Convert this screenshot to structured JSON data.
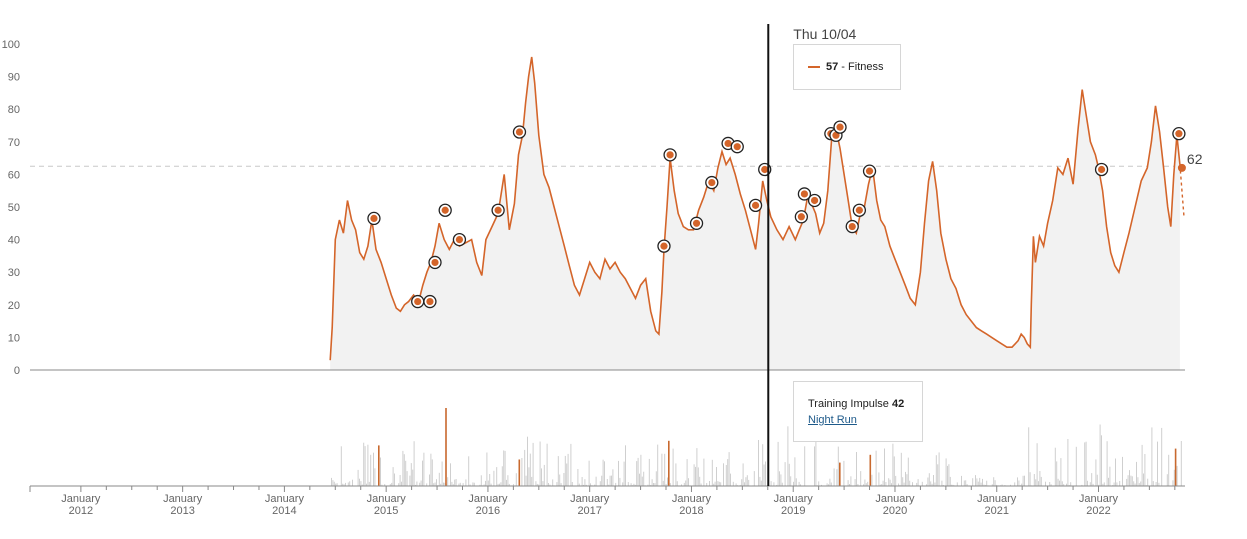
{
  "chart_data": {
    "type": "area",
    "title": "",
    "ylim": [
      0,
      100
    ],
    "yticks": [
      0,
      10,
      20,
      30,
      40,
      50,
      60,
      70,
      80,
      90,
      100
    ],
    "xlim": [
      2011.5,
      2022.85
    ],
    "x_ticks": [
      {
        "year": 2012,
        "label_top": "January",
        "label_bottom": "2012"
      },
      {
        "year": 2013,
        "label_top": "January",
        "label_bottom": "2013"
      },
      {
        "year": 2014,
        "label_top": "January",
        "label_bottom": "2014"
      },
      {
        "year": 2015,
        "label_top": "January",
        "label_bottom": "2015"
      },
      {
        "year": 2016,
        "label_top": "January",
        "label_bottom": "2016"
      },
      {
        "year": 2017,
        "label_top": "January",
        "label_bottom": "2017"
      },
      {
        "year": 2018,
        "label_top": "January",
        "label_bottom": "2018"
      },
      {
        "year": 2019,
        "label_top": "January",
        "label_bottom": "2019"
      },
      {
        "year": 2020,
        "label_top": "January",
        "label_bottom": "2020"
      },
      {
        "year": 2021,
        "label_top": "January",
        "label_bottom": "2021"
      },
      {
        "year": 2022,
        "label_top": "January",
        "label_bottom": "2022"
      }
    ],
    "fitness_series": {
      "name": "Fitness",
      "color": "#d4652a",
      "fill": "#f2f2f2",
      "points": [
        [
          2014.45,
          3
        ],
        [
          2014.47,
          13
        ],
        [
          2014.5,
          40
        ],
        [
          2014.54,
          46
        ],
        [
          2014.58,
          42
        ],
        [
          2014.62,
          52
        ],
        [
          2014.66,
          46
        ],
        [
          2014.7,
          43
        ],
        [
          2014.74,
          36
        ],
        [
          2014.78,
          34
        ],
        [
          2014.82,
          38
        ],
        [
          2014.86,
          46
        ],
        [
          2014.9,
          37
        ],
        [
          2014.95,
          33
        ],
        [
          2015.0,
          28
        ],
        [
          2015.05,
          23
        ],
        [
          2015.1,
          19
        ],
        [
          2015.14,
          18
        ],
        [
          2015.18,
          20
        ],
        [
          2015.22,
          21
        ],
        [
          2015.27,
          23
        ],
        [
          2015.32,
          21
        ],
        [
          2015.36,
          26
        ],
        [
          2015.4,
          30
        ],
        [
          2015.44,
          33
        ],
        [
          2015.48,
          38
        ],
        [
          2015.52,
          45
        ],
        [
          2015.57,
          40
        ],
        [
          2015.62,
          37
        ],
        [
          2015.67,
          40
        ],
        [
          2015.72,
          38
        ],
        [
          2015.78,
          39
        ],
        [
          2015.84,
          40
        ],
        [
          2015.89,
          33
        ],
        [
          2015.94,
          29
        ],
        [
          2015.98,
          40
        ],
        [
          2016.04,
          44
        ],
        [
          2016.1,
          48
        ],
        [
          2016.16,
          60
        ],
        [
          2016.21,
          43
        ],
        [
          2016.26,
          51
        ],
        [
          2016.3,
          66
        ],
        [
          2016.34,
          72
        ],
        [
          2016.37,
          82
        ],
        [
          2016.4,
          90
        ],
        [
          2016.43,
          96
        ],
        [
          2016.46,
          88
        ],
        [
          2016.5,
          72
        ],
        [
          2016.55,
          60
        ],
        [
          2016.6,
          56
        ],
        [
          2016.65,
          50
        ],
        [
          2016.7,
          44
        ],
        [
          2016.75,
          38
        ],
        [
          2016.8,
          32
        ],
        [
          2016.85,
          26
        ],
        [
          2016.9,
          23
        ],
        [
          2016.95,
          28
        ],
        [
          2017.0,
          33
        ],
        [
          2017.05,
          30
        ],
        [
          2017.1,
          28
        ],
        [
          2017.15,
          34
        ],
        [
          2017.2,
          31
        ],
        [
          2017.25,
          33
        ],
        [
          2017.3,
          30
        ],
        [
          2017.35,
          28
        ],
        [
          2017.4,
          25
        ],
        [
          2017.45,
          22
        ],
        [
          2017.5,
          26
        ],
        [
          2017.55,
          28
        ],
        [
          2017.6,
          18
        ],
        [
          2017.65,
          12
        ],
        [
          2017.68,
          11
        ],
        [
          2017.71,
          24
        ],
        [
          2017.73,
          37
        ],
        [
          2017.76,
          50
        ],
        [
          2017.79,
          65
        ],
        [
          2017.83,
          55
        ],
        [
          2017.87,
          48
        ],
        [
          2017.92,
          44
        ],
        [
          2017.97,
          43
        ],
        [
          2018.02,
          43
        ],
        [
          2018.07,
          49
        ],
        [
          2018.12,
          53
        ],
        [
          2018.17,
          58
        ],
        [
          2018.22,
          55
        ],
        [
          2018.26,
          62
        ],
        [
          2018.3,
          67
        ],
        [
          2018.34,
          63
        ],
        [
          2018.38,
          65
        ],
        [
          2018.43,
          60
        ],
        [
          2018.48,
          54
        ],
        [
          2018.53,
          49
        ],
        [
          2018.58,
          43
        ],
        [
          2018.63,
          37
        ],
        [
          2018.66,
          45
        ],
        [
          2018.7,
          58
        ],
        [
          2018.74,
          52
        ],
        [
          2018.78,
          47
        ],
        [
          2018.84,
          43
        ],
        [
          2018.9,
          40
        ],
        [
          2018.96,
          44
        ],
        [
          2019.02,
          40
        ],
        [
          2019.06,
          43
        ],
        [
          2019.1,
          46
        ],
        [
          2019.14,
          53
        ],
        [
          2019.18,
          51
        ],
        [
          2019.22,
          48
        ],
        [
          2019.26,
          42
        ],
        [
          2019.3,
          45
        ],
        [
          2019.34,
          55
        ],
        [
          2019.38,
          72
        ],
        [
          2019.42,
          74
        ],
        [
          2019.46,
          68
        ],
        [
          2019.5,
          60
        ],
        [
          2019.54,
          52
        ],
        [
          2019.58,
          44
        ],
        [
          2019.62,
          42
        ],
        [
          2019.66,
          48
        ],
        [
          2019.7,
          50
        ],
        [
          2019.74,
          57
        ],
        [
          2019.78,
          62
        ],
        [
          2019.82,
          52
        ],
        [
          2019.86,
          46
        ],
        [
          2019.9,
          44
        ],
        [
          2019.95,
          38
        ],
        [
          2020.0,
          34
        ],
        [
          2020.05,
          30
        ],
        [
          2020.1,
          26
        ],
        [
          2020.15,
          22
        ],
        [
          2020.2,
          20
        ],
        [
          2020.25,
          30
        ],
        [
          2020.29,
          45
        ],
        [
          2020.33,
          58
        ],
        [
          2020.37,
          64
        ],
        [
          2020.41,
          55
        ],
        [
          2020.45,
          42
        ],
        [
          2020.5,
          34
        ],
        [
          2020.55,
          28
        ],
        [
          2020.6,
          25
        ],
        [
          2020.65,
          20
        ],
        [
          2020.7,
          17
        ],
        [
          2020.75,
          15
        ],
        [
          2020.8,
          13
        ],
        [
          2020.85,
          12
        ],
        [
          2020.9,
          11
        ],
        [
          2020.95,
          10
        ],
        [
          2021.0,
          9
        ],
        [
          2021.05,
          8
        ],
        [
          2021.1,
          7
        ],
        [
          2021.15,
          7
        ],
        [
          2021.18,
          8
        ],
        [
          2021.21,
          9
        ],
        [
          2021.24,
          11
        ],
        [
          2021.27,
          10
        ],
        [
          2021.3,
          8
        ],
        [
          2021.33,
          7
        ],
        [
          2021.34,
          20
        ],
        [
          2021.36,
          41
        ],
        [
          2021.38,
          33
        ],
        [
          2021.42,
          41
        ],
        [
          2021.46,
          38
        ],
        [
          2021.5,
          45
        ],
        [
          2021.55,
          52
        ],
        [
          2021.6,
          62
        ],
        [
          2021.65,
          60
        ],
        [
          2021.7,
          65
        ],
        [
          2021.75,
          57
        ],
        [
          2021.8,
          74
        ],
        [
          2021.84,
          86
        ],
        [
          2021.88,
          78
        ],
        [
          2021.92,
          70
        ],
        [
          2021.97,
          66
        ],
        [
          2022.0,
          62
        ],
        [
          2022.04,
          55
        ],
        [
          2022.08,
          44
        ],
        [
          2022.12,
          36
        ],
        [
          2022.16,
          32
        ],
        [
          2022.2,
          30
        ],
        [
          2022.25,
          36
        ],
        [
          2022.3,
          42
        ],
        [
          2022.36,
          50
        ],
        [
          2022.42,
          58
        ],
        [
          2022.48,
          62
        ],
        [
          2022.52,
          70
        ],
        [
          2022.56,
          81
        ],
        [
          2022.6,
          73
        ],
        [
          2022.64,
          62
        ],
        [
          2022.68,
          50
        ],
        [
          2022.71,
          44
        ],
        [
          2022.74,
          60
        ],
        [
          2022.77,
          72
        ],
        [
          2022.8,
          63
        ]
      ],
      "projection": [
        [
          2022.8,
          63
        ],
        [
          2022.84,
          47
        ]
      ],
      "current_label": "62",
      "current_value": 62
    },
    "reference_line_value": 62.5,
    "activity_markers": [
      [
        2014.88,
        46.5
      ],
      [
        2015.31,
        21
      ],
      [
        2015.43,
        21
      ],
      [
        2015.48,
        33
      ],
      [
        2015.58,
        49
      ],
      [
        2015.72,
        40
      ],
      [
        2016.1,
        49
      ],
      [
        2016.31,
        73
      ],
      [
        2017.73,
        38
      ],
      [
        2017.79,
        66
      ],
      [
        2018.05,
        45
      ],
      [
        2018.2,
        57.5
      ],
      [
        2018.36,
        69.5
      ],
      [
        2018.45,
        68.5
      ],
      [
        2018.63,
        50.5
      ],
      [
        2018.72,
        61.5
      ],
      [
        2019.08,
        47
      ],
      [
        2019.11,
        54
      ],
      [
        2019.21,
        52
      ],
      [
        2019.37,
        72.5
      ],
      [
        2019.42,
        72
      ],
      [
        2019.46,
        74.5
      ],
      [
        2019.58,
        44
      ],
      [
        2019.65,
        49
      ],
      [
        2019.75,
        61
      ],
      [
        2022.03,
        61.5
      ],
      [
        2022.79,
        72.5
      ]
    ],
    "impulse_bars": {
      "gray_color": "#cfcfcf",
      "highlight_color": "#c8692e",
      "highlights": [
        {
          "x": 2014.92,
          "v": 0.52
        },
        {
          "x": 2015.58,
          "v": 1.0
        },
        {
          "x": 2016.3,
          "v": 0.34
        },
        {
          "x": 2017.77,
          "v": 0.58
        },
        {
          "x": 2019.45,
          "v": 0.3
        },
        {
          "x": 2019.75,
          "v": 0.4
        },
        {
          "x": 2022.75,
          "v": 0.48
        }
      ]
    },
    "hover": {
      "date_label": "Thu 10/04",
      "x": 2018.755
    }
  },
  "fitness_tooltip": {
    "value": "57",
    "label": " - Fitness"
  },
  "impulse_tooltip": {
    "label": "Training Impulse ",
    "value": "42",
    "activity_link": "Night Run"
  }
}
